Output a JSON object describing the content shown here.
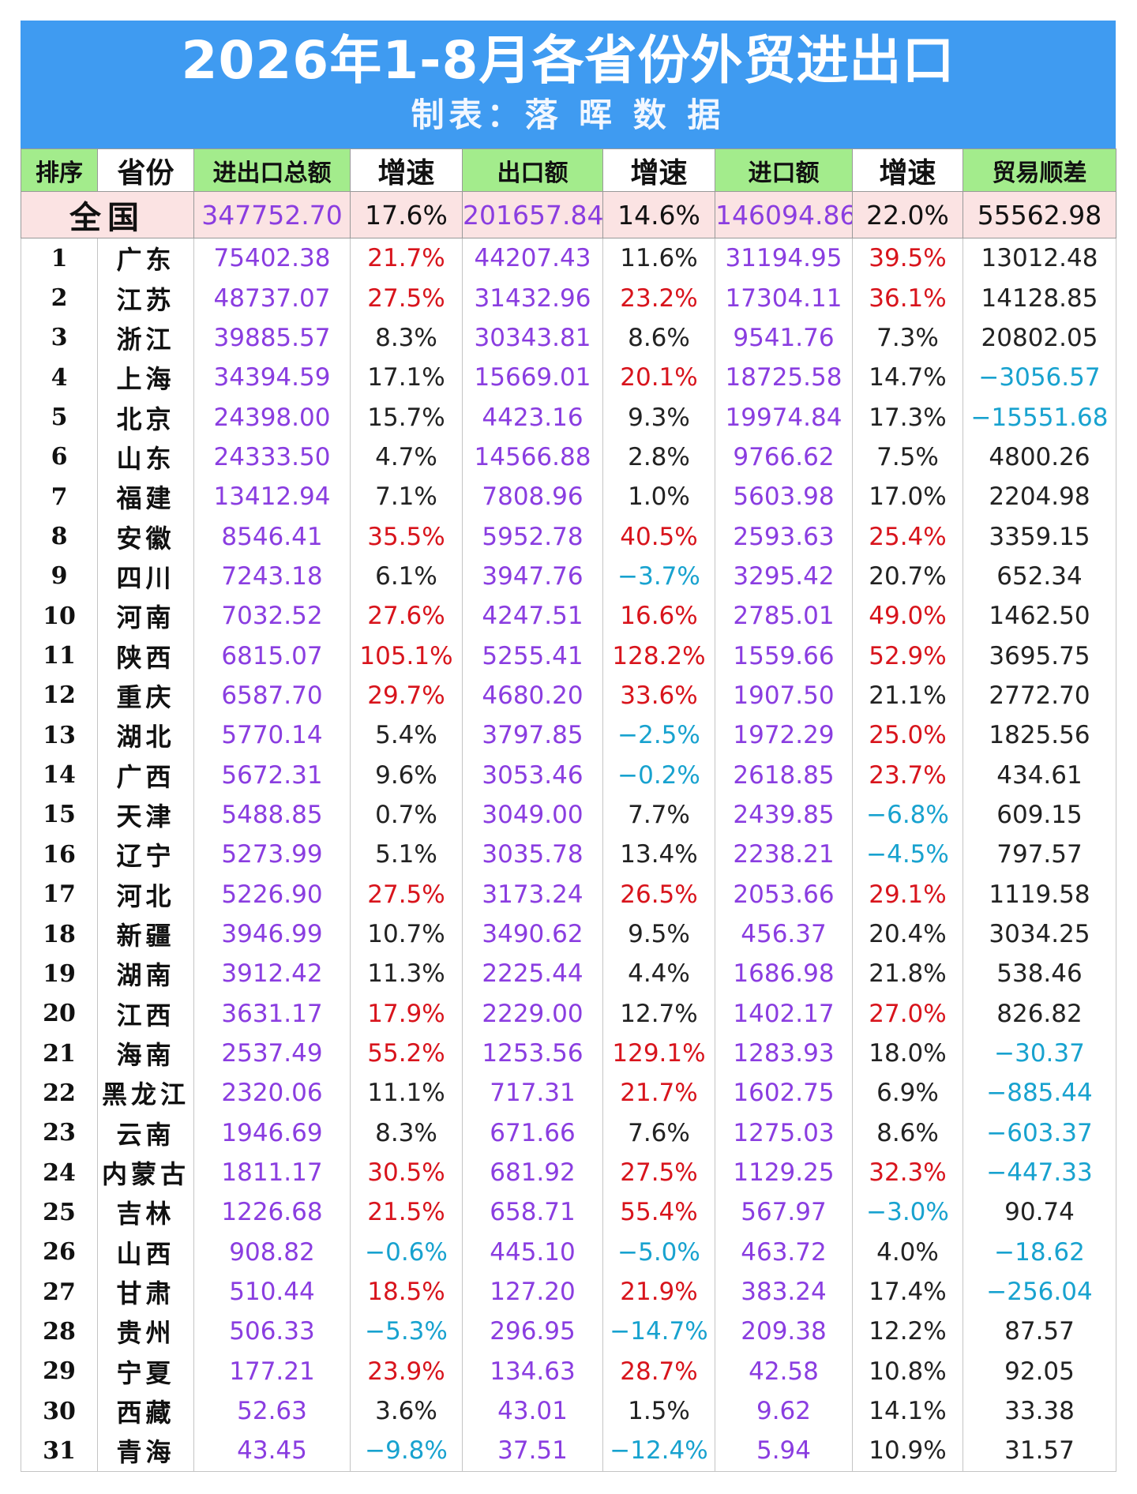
{
  "header": {
    "title": "2026年1-8月各省份外贸进出口",
    "subtitle": "制表：落 晖 数 据"
  },
  "columns": [
    "排序",
    "省份",
    "进出口总额",
    "增速",
    "出口额",
    "增速",
    "进口额",
    "增速",
    "贸易顺差"
  ],
  "national": {
    "name": "全国",
    "total": "347752.70",
    "total_growth": "17.6%",
    "export": "201657.84",
    "export_growth": "14.6%",
    "import": "146094.86",
    "import_growth": "22.0%",
    "surplus": "55562.98"
  },
  "colors": {
    "header_bg": "#3f9bf1",
    "column_header_bg": "#a3ec8c",
    "national_bg": "#fbe3e3",
    "purple": "#8a3de0",
    "red": "#d8141c",
    "blue": "#18a2cf"
  },
  "rows": [
    {
      "rank": "1",
      "name": "广东",
      "total": "75402.38",
      "tg": "21.7%",
      "tc": "red",
      "exp": "44207.43",
      "eg": "11.6%",
      "ec": "blk",
      "imp": "31194.95",
      "ig": "39.5%",
      "ic": "red",
      "sur": "13012.48",
      "sc": "blk"
    },
    {
      "rank": "2",
      "name": "江苏",
      "total": "48737.07",
      "tg": "27.5%",
      "tc": "red",
      "exp": "31432.96",
      "eg": "23.2%",
      "ec": "red",
      "imp": "17304.11",
      "ig": "36.1%",
      "ic": "red",
      "sur": "14128.85",
      "sc": "blk"
    },
    {
      "rank": "3",
      "name": "浙江",
      "total": "39885.57",
      "tg": "8.3%",
      "tc": "blk",
      "exp": "30343.81",
      "eg": "8.6%",
      "ec": "blk",
      "imp": "9541.76",
      "ig": "7.3%",
      "ic": "blk",
      "sur": "20802.05",
      "sc": "blk"
    },
    {
      "rank": "4",
      "name": "上海",
      "total": "34394.59",
      "tg": "17.1%",
      "tc": "blk",
      "exp": "15669.01",
      "eg": "20.1%",
      "ec": "red",
      "imp": "18725.58",
      "ig": "14.7%",
      "ic": "blk",
      "sur": "−3056.57",
      "sc": "blue"
    },
    {
      "rank": "5",
      "name": "北京",
      "total": "24398.00",
      "tg": "15.7%",
      "tc": "blk",
      "exp": "4423.16",
      "eg": "9.3%",
      "ec": "blk",
      "imp": "19974.84",
      "ig": "17.3%",
      "ic": "blk",
      "sur": "−15551.68",
      "sc": "blue"
    },
    {
      "rank": "6",
      "name": "山东",
      "total": "24333.50",
      "tg": "4.7%",
      "tc": "blk",
      "exp": "14566.88",
      "eg": "2.8%",
      "ec": "blk",
      "imp": "9766.62",
      "ig": "7.5%",
      "ic": "blk",
      "sur": "4800.26",
      "sc": "blk"
    },
    {
      "rank": "7",
      "name": "福建",
      "total": "13412.94",
      "tg": "7.1%",
      "tc": "blk",
      "exp": "7808.96",
      "eg": "1.0%",
      "ec": "blk",
      "imp": "5603.98",
      "ig": "17.0%",
      "ic": "blk",
      "sur": "2204.98",
      "sc": "blk"
    },
    {
      "rank": "8",
      "name": "安徽",
      "total": "8546.41",
      "tg": "35.5%",
      "tc": "red",
      "exp": "5952.78",
      "eg": "40.5%",
      "ec": "red",
      "imp": "2593.63",
      "ig": "25.4%",
      "ic": "red",
      "sur": "3359.15",
      "sc": "blk"
    },
    {
      "rank": "9",
      "name": "四川",
      "total": "7243.18",
      "tg": "6.1%",
      "tc": "blk",
      "exp": "3947.76",
      "eg": "−3.7%",
      "ec": "blue",
      "imp": "3295.42",
      "ig": "20.7%",
      "ic": "blk",
      "sur": "652.34",
      "sc": "blk"
    },
    {
      "rank": "10",
      "name": "河南",
      "total": "7032.52",
      "tg": "27.6%",
      "tc": "red",
      "exp": "4247.51",
      "eg": "16.6%",
      "ec": "red",
      "imp": "2785.01",
      "ig": "49.0%",
      "ic": "red",
      "sur": "1462.50",
      "sc": "blk"
    },
    {
      "rank": "11",
      "name": "陕西",
      "total": "6815.07",
      "tg": "105.1%",
      "tc": "red",
      "exp": "5255.41",
      "eg": "128.2%",
      "ec": "red",
      "imp": "1559.66",
      "ig": "52.9%",
      "ic": "red",
      "sur": "3695.75",
      "sc": "blk"
    },
    {
      "rank": "12",
      "name": "重庆",
      "total": "6587.70",
      "tg": "29.7%",
      "tc": "red",
      "exp": "4680.20",
      "eg": "33.6%",
      "ec": "red",
      "imp": "1907.50",
      "ig": "21.1%",
      "ic": "blk",
      "sur": "2772.70",
      "sc": "blk"
    },
    {
      "rank": "13",
      "name": "湖北",
      "total": "5770.14",
      "tg": "5.4%",
      "tc": "blk",
      "exp": "3797.85",
      "eg": "−2.5%",
      "ec": "blue",
      "imp": "1972.29",
      "ig": "25.0%",
      "ic": "red",
      "sur": "1825.56",
      "sc": "blk"
    },
    {
      "rank": "14",
      "name": "广西",
      "total": "5672.31",
      "tg": "9.6%",
      "tc": "blk",
      "exp": "3053.46",
      "eg": "−0.2%",
      "ec": "blue",
      "imp": "2618.85",
      "ig": "23.7%",
      "ic": "red",
      "sur": "434.61",
      "sc": "blk"
    },
    {
      "rank": "15",
      "name": "天津",
      "total": "5488.85",
      "tg": "0.7%",
      "tc": "blk",
      "exp": "3049.00",
      "eg": "7.7%",
      "ec": "blk",
      "imp": "2439.85",
      "ig": "−6.8%",
      "ic": "blue",
      "sur": "609.15",
      "sc": "blk"
    },
    {
      "rank": "16",
      "name": "辽宁",
      "total": "5273.99",
      "tg": "5.1%",
      "tc": "blk",
      "exp": "3035.78",
      "eg": "13.4%",
      "ec": "blk",
      "imp": "2238.21",
      "ig": "−4.5%",
      "ic": "blue",
      "sur": "797.57",
      "sc": "blk"
    },
    {
      "rank": "17",
      "name": "河北",
      "total": "5226.90",
      "tg": "27.5%",
      "tc": "red",
      "exp": "3173.24",
      "eg": "26.5%",
      "ec": "red",
      "imp": "2053.66",
      "ig": "29.1%",
      "ic": "red",
      "sur": "1119.58",
      "sc": "blk"
    },
    {
      "rank": "18",
      "name": "新疆",
      "total": "3946.99",
      "tg": "10.7%",
      "tc": "blk",
      "exp": "3490.62",
      "eg": "9.5%",
      "ec": "blk",
      "imp": "456.37",
      "ig": "20.4%",
      "ic": "blk",
      "sur": "3034.25",
      "sc": "blk"
    },
    {
      "rank": "19",
      "name": "湖南",
      "total": "3912.42",
      "tg": "11.3%",
      "tc": "blk",
      "exp": "2225.44",
      "eg": "4.4%",
      "ec": "blk",
      "imp": "1686.98",
      "ig": "21.8%",
      "ic": "blk",
      "sur": "538.46",
      "sc": "blk"
    },
    {
      "rank": "20",
      "name": "江西",
      "total": "3631.17",
      "tg": "17.9%",
      "tc": "red",
      "exp": "2229.00",
      "eg": "12.7%",
      "ec": "blk",
      "imp": "1402.17",
      "ig": "27.0%",
      "ic": "red",
      "sur": "826.82",
      "sc": "blk"
    },
    {
      "rank": "21",
      "name": "海南",
      "total": "2537.49",
      "tg": "55.2%",
      "tc": "red",
      "exp": "1253.56",
      "eg": "129.1%",
      "ec": "red",
      "imp": "1283.93",
      "ig": "18.0%",
      "ic": "blk",
      "sur": "−30.37",
      "sc": "blue"
    },
    {
      "rank": "22",
      "name": "黑龙江",
      "total": "2320.06",
      "tg": "11.1%",
      "tc": "blk",
      "exp": "717.31",
      "eg": "21.7%",
      "ec": "red",
      "imp": "1602.75",
      "ig": "6.9%",
      "ic": "blk",
      "sur": "−885.44",
      "sc": "blue"
    },
    {
      "rank": "23",
      "name": "云南",
      "total": "1946.69",
      "tg": "8.3%",
      "tc": "blk",
      "exp": "671.66",
      "eg": "7.6%",
      "ec": "blk",
      "imp": "1275.03",
      "ig": "8.6%",
      "ic": "blk",
      "sur": "−603.37",
      "sc": "blue"
    },
    {
      "rank": "24",
      "name": "内蒙古",
      "total": "1811.17",
      "tg": "30.5%",
      "tc": "red",
      "exp": "681.92",
      "eg": "27.5%",
      "ec": "red",
      "imp": "1129.25",
      "ig": "32.3%",
      "ic": "red",
      "sur": "−447.33",
      "sc": "blue"
    },
    {
      "rank": "25",
      "name": "吉林",
      "total": "1226.68",
      "tg": "21.5%",
      "tc": "red",
      "exp": "658.71",
      "eg": "55.4%",
      "ec": "red",
      "imp": "567.97",
      "ig": "−3.0%",
      "ic": "blue",
      "sur": "90.74",
      "sc": "blk"
    },
    {
      "rank": "26",
      "name": "山西",
      "total": "908.82",
      "tg": "−0.6%",
      "tc": "blue",
      "exp": "445.10",
      "eg": "−5.0%",
      "ec": "blue",
      "imp": "463.72",
      "ig": "4.0%",
      "ic": "blk",
      "sur": "−18.62",
      "sc": "blue"
    },
    {
      "rank": "27",
      "name": "甘肃",
      "total": "510.44",
      "tg": "18.5%",
      "tc": "red",
      "exp": "127.20",
      "eg": "21.9%",
      "ec": "red",
      "imp": "383.24",
      "ig": "17.4%",
      "ic": "blk",
      "sur": "−256.04",
      "sc": "blue"
    },
    {
      "rank": "28",
      "name": "贵州",
      "total": "506.33",
      "tg": "−5.3%",
      "tc": "blue",
      "exp": "296.95",
      "eg": "−14.7%",
      "ec": "blue",
      "imp": "209.38",
      "ig": "12.2%",
      "ic": "blk",
      "sur": "87.57",
      "sc": "blk"
    },
    {
      "rank": "29",
      "name": "宁夏",
      "total": "177.21",
      "tg": "23.9%",
      "tc": "red",
      "exp": "134.63",
      "eg": "28.7%",
      "ec": "red",
      "imp": "42.58",
      "ig": "10.8%",
      "ic": "blk",
      "sur": "92.05",
      "sc": "blk"
    },
    {
      "rank": "30",
      "name": "西藏",
      "total": "52.63",
      "tg": "3.6%",
      "tc": "blk",
      "exp": "43.01",
      "eg": "1.5%",
      "ec": "blk",
      "imp": "9.62",
      "ig": "14.1%",
      "ic": "blk",
      "sur": "33.38",
      "sc": "blk"
    },
    {
      "rank": "31",
      "name": "青海",
      "total": "43.45",
      "tg": "−9.8%",
      "tc": "blue",
      "exp": "37.51",
      "eg": "−12.4%",
      "ec": "blue",
      "imp": "5.94",
      "ig": "10.9%",
      "ic": "blk",
      "sur": "31.57",
      "sc": "blk"
    }
  ]
}
